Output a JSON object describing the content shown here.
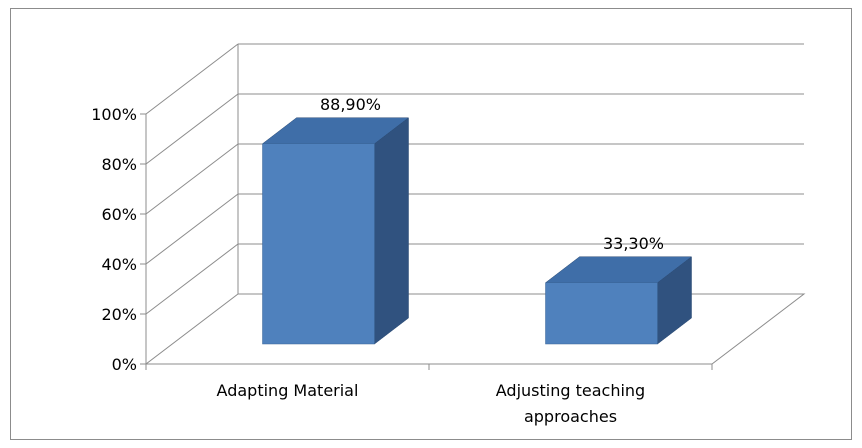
{
  "chart_data": {
    "type": "bar",
    "style": "3d-column",
    "categories": [
      "Adapting Material",
      "Adjusting teaching approaches"
    ],
    "category_label_lines": [
      [
        "Adapting Material"
      ],
      [
        "Adjusting teaching",
        "approaches"
      ]
    ],
    "values": [
      88.9,
      33.3
    ],
    "data_labels": [
      "88,90%",
      "33,30%"
    ],
    "y_ticks": [
      "0%",
      "20%",
      "40%",
      "60%",
      "80%",
      "100%"
    ],
    "ylim": [
      0,
      100
    ],
    "grid": true,
    "legend": "none",
    "bar_color": "#4f81bd",
    "bar_top_color": "#3f6ea8",
    "bar_side_color": "#30527f"
  }
}
